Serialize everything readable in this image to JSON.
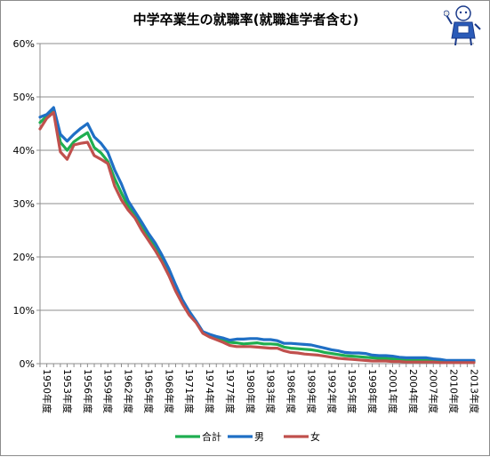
{
  "chart_data": {
    "type": "line",
    "title": "中学卒業生の就職率(就職進学者含む)",
    "ylim": [
      0,
      60
    ],
    "yticks": [
      "0%",
      "10%",
      "20%",
      "30%",
      "40%",
      "50%",
      "60%"
    ],
    "grid": true,
    "legend": "bottom",
    "x": [
      1950,
      1951,
      1952,
      1953,
      1954,
      1955,
      1956,
      1957,
      1958,
      1959,
      1960,
      1961,
      1962,
      1963,
      1964,
      1965,
      1966,
      1967,
      1968,
      1969,
      1970,
      1971,
      1972,
      1973,
      1974,
      1975,
      1976,
      1977,
      1978,
      1979,
      1980,
      1981,
      1982,
      1983,
      1984,
      1985,
      1986,
      1987,
      1988,
      1989,
      1990,
      1991,
      1992,
      1993,
      1994,
      1995,
      1996,
      1997,
      1998,
      1999,
      2000,
      2001,
      2002,
      2003,
      2004,
      2005,
      2006,
      2007,
      2008,
      2009,
      2010,
      2011,
      2012,
      2013,
      2014
    ],
    "xticklabels": [
      "1950年度",
      "1953年度",
      "1956年度",
      "1959年度",
      "1962年度",
      "1965年度",
      "1968年度",
      "1971年度",
      "1974年度",
      "1977年度",
      "1980年度",
      "1983年度",
      "1986年度",
      "1989年度",
      "1992年度",
      "1995年度",
      "1998年度",
      "2001年度",
      "2004年度",
      "2007年度",
      "2010年度",
      "2013年度"
    ],
    "series": [
      {
        "name": "合計",
        "color": "#1fae50",
        "values": [
          45.2,
          46.4,
          47.6,
          41.5,
          40.0,
          41.6,
          42.5,
          43.3,
          40.5,
          39.5,
          37.9,
          34.7,
          32.0,
          29.5,
          27.8,
          25.5,
          23.7,
          21.8,
          19.6,
          17.0,
          14.2,
          11.5,
          9.4,
          7.8,
          5.8,
          5.2,
          4.8,
          4.4,
          4.0,
          3.9,
          3.7,
          3.8,
          3.9,
          3.7,
          3.7,
          3.6,
          3.1,
          2.9,
          2.8,
          2.7,
          2.6,
          2.4,
          2.1,
          1.9,
          1.7,
          1.5,
          1.4,
          1.3,
          1.2,
          1.1,
          1.0,
          1.0,
          0.9,
          0.8,
          0.7,
          0.7,
          0.7,
          0.7,
          0.6,
          0.5,
          0.4,
          0.4,
          0.4,
          0.4,
          0.4
        ]
      },
      {
        "name": "男",
        "color": "#1f6fc5",
        "values": [
          46.2,
          46.7,
          48.0,
          43.0,
          41.7,
          43.0,
          44.1,
          45.0,
          42.5,
          41.3,
          39.6,
          36.3,
          33.7,
          30.5,
          28.5,
          26.5,
          24.4,
          22.6,
          20.3,
          17.8,
          14.8,
          12.0,
          9.8,
          8.0,
          6.0,
          5.5,
          5.1,
          4.8,
          4.4,
          4.6,
          4.6,
          4.7,
          4.7,
          4.5,
          4.5,
          4.3,
          3.8,
          3.8,
          3.7,
          3.6,
          3.5,
          3.2,
          2.9,
          2.6,
          2.4,
          2.1,
          2.0,
          2.0,
          1.9,
          1.6,
          1.5,
          1.5,
          1.4,
          1.2,
          1.1,
          1.1,
          1.1,
          1.1,
          0.9,
          0.8,
          0.6,
          0.6,
          0.6,
          0.6,
          0.6
        ]
      },
      {
        "name": "女",
        "color": "#c0504d",
        "values": [
          44.0,
          46.0,
          47.1,
          39.7,
          38.3,
          41.0,
          41.3,
          41.5,
          39.0,
          38.3,
          37.5,
          33.3,
          30.7,
          28.8,
          27.3,
          25.0,
          23.1,
          21.2,
          19.0,
          16.5,
          13.6,
          11.2,
          9.1,
          7.7,
          5.7,
          5.0,
          4.5,
          4.0,
          3.4,
          3.2,
          3.2,
          3.2,
          3.1,
          3.0,
          2.9,
          2.9,
          2.4,
          2.1,
          2.0,
          1.8,
          1.7,
          1.6,
          1.4,
          1.2,
          1.0,
          0.9,
          0.8,
          0.7,
          0.6,
          0.5,
          0.5,
          0.5,
          0.4,
          0.4,
          0.3,
          0.3,
          0.3,
          0.3,
          0.3,
          0.2,
          0.2,
          0.2,
          0.2,
          0.2,
          0.2
        ]
      }
    ]
  }
}
